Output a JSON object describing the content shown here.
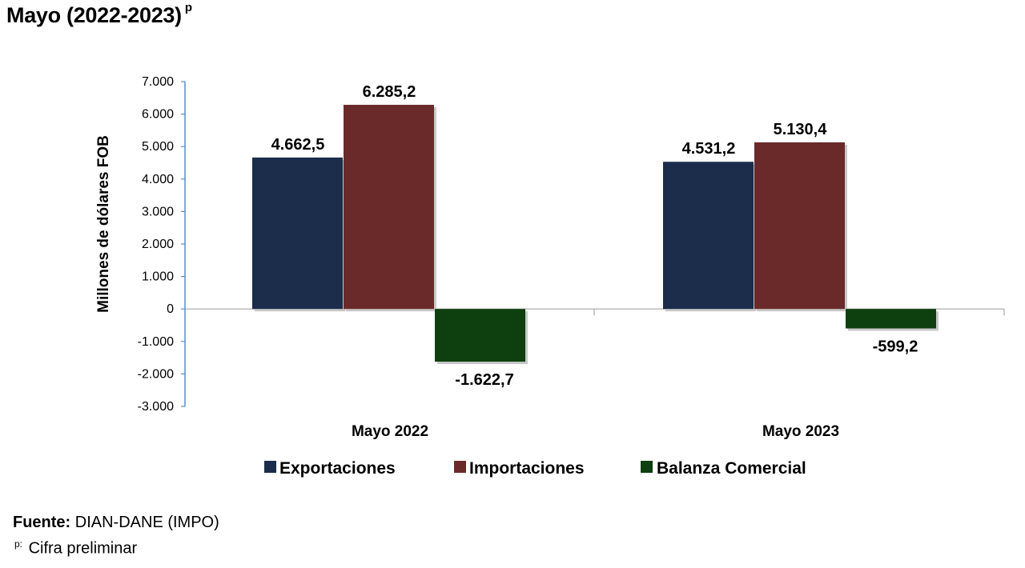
{
  "header": {
    "title": "Mayo (2022-2023)",
    "title_sup": "p"
  },
  "chart_data": {
    "type": "bar",
    "categories": [
      "Mayo 2022",
      "Mayo 2023"
    ],
    "series": [
      {
        "name": "Exportaciones",
        "color": "#1b2d4a",
        "values": [
          4662.5,
          4531.2
        ],
        "labels": [
          "4.662,5",
          "4.531,2"
        ]
      },
      {
        "name": "Importaciones",
        "color": "#6b2a2a",
        "values": [
          6285.2,
          5130.4
        ],
        "labels": [
          "6.285,2",
          "5.130,4"
        ]
      },
      {
        "name": "Balanza Comercial",
        "color": "#0e3f0e",
        "values": [
          -1622.7,
          -599.2
        ],
        "labels": [
          "-1.622,7",
          "-599,2"
        ]
      }
    ],
    "ylabel": "Millones de dólares FOB",
    "xlabel": "",
    "ylim": [
      -3000,
      7000
    ],
    "yticks": [
      7000,
      6000,
      5000,
      4000,
      3000,
      2000,
      1000,
      0,
      -1000,
      -2000,
      -3000
    ],
    "ytick_labels": [
      "7.000",
      "6.000",
      "5.000",
      "4.000",
      "3.000",
      "2.000",
      "1.000",
      "0",
      "-1.000",
      "-2.000",
      "-3.000"
    ],
    "legend_position": "bottom"
  },
  "footer": {
    "source_label": "Fuente:",
    "source_text": " DIAN-DANE (IMPO)",
    "note_sup": "p:",
    "note_text": " Cifra preliminar"
  }
}
